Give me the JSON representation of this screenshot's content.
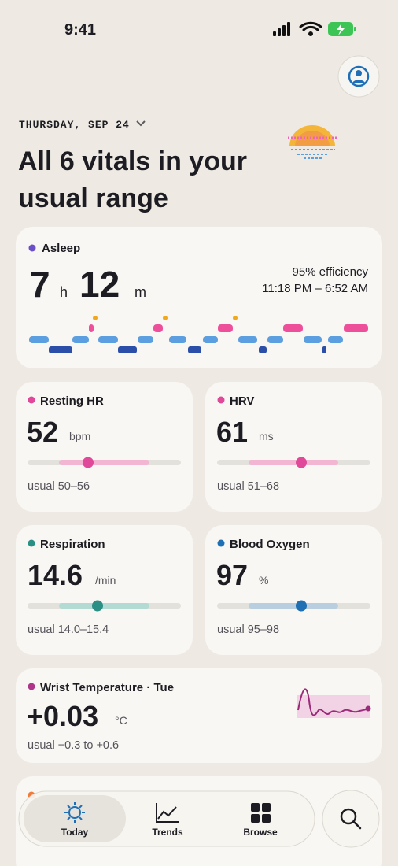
{
  "status_bar": {
    "time": "9:41"
  },
  "header": {
    "date": "THURSDAY, SEP 24",
    "headline": [
      "All 6 vitals in your",
      "usual range"
    ]
  },
  "sleep": {
    "label": "Asleep",
    "hours": 7,
    "hours_unit": "h",
    "minutes": 12,
    "minutes_unit": "m",
    "efficiency": "95% efficiency",
    "window": "11:18 PM – 6:52 AM"
  },
  "vitals": [
    {
      "label": "Resting HR",
      "value": 52,
      "unit": "bpm",
      "usual": "usual 50–56"
    },
    {
      "label": "HRV",
      "value": 61,
      "unit": "ms",
      "usual": "usual 51–68"
    },
    {
      "label": "Respiration",
      "value": 14.6,
      "unit": "/min",
      "usual": "usual 14.0–15.4"
    },
    {
      "label": "Blood Oxygen",
      "value": 97,
      "unit": "%",
      "usual": "usual 95–98"
    }
  ],
  "temperature": {
    "label": "Wrist Temperature · Tue",
    "value": "+0.03",
    "unit": "°C",
    "usual": "usual −0.3 to +0.6"
  },
  "tabs": [
    "Today",
    "Trends",
    "Browse"
  ]
}
